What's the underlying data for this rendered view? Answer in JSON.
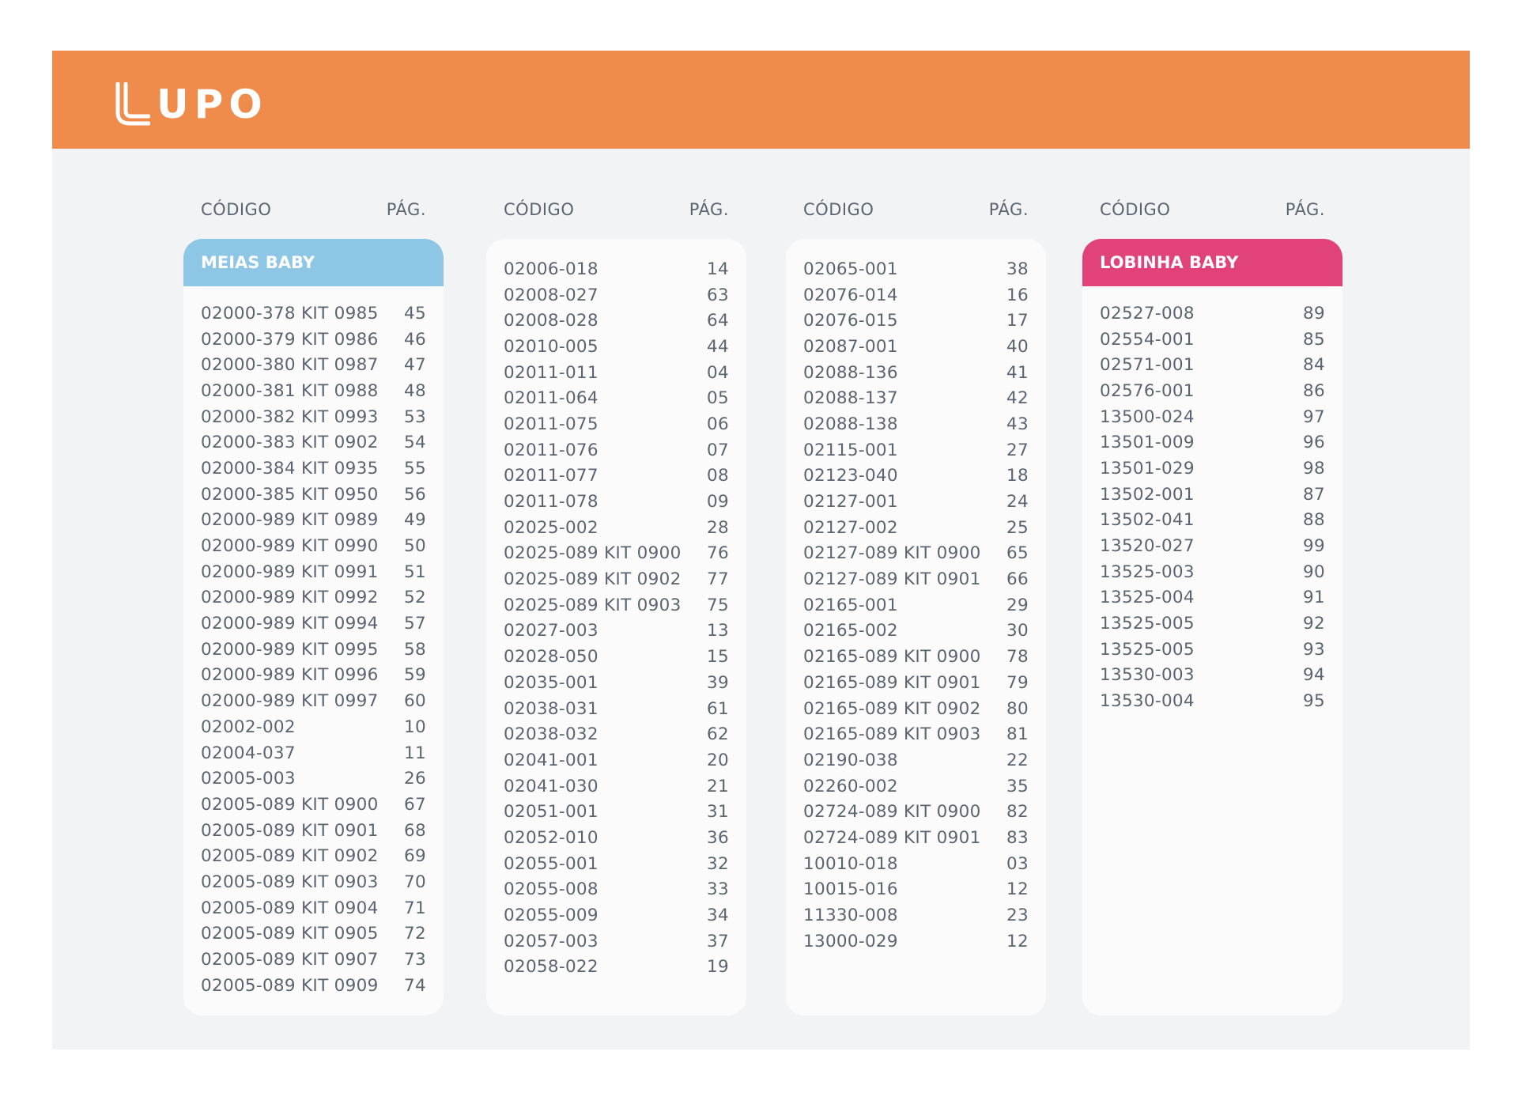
{
  "brand": {
    "name": "UPO",
    "color": "#f08c4b"
  },
  "columns": [
    {
      "code_header": "CÓDIGO",
      "page_header": "PÁG.",
      "banner": {
        "title": "MEIAS BABY",
        "color": "#8ec6e6"
      },
      "rows": [
        [
          "02000-378 KIT 0985",
          "45"
        ],
        [
          "02000-379 KIT 0986",
          "46"
        ],
        [
          "02000-380 KIT 0987",
          "47"
        ],
        [
          "02000-381 KIT 0988",
          "48"
        ],
        [
          "02000-382 KIT 0993",
          "53"
        ],
        [
          "02000-383 KIT 0902",
          "54"
        ],
        [
          "02000-384 KIT 0935",
          "55"
        ],
        [
          "02000-385 KIT 0950",
          "56"
        ],
        [
          "02000-989 KIT 0989",
          "49"
        ],
        [
          "02000-989 KIT 0990",
          "50"
        ],
        [
          "02000-989 KIT 0991",
          "51"
        ],
        [
          "02000-989 KIT 0992",
          "52"
        ],
        [
          "02000-989 KIT 0994",
          "57"
        ],
        [
          "02000-989 KIT 0995",
          "58"
        ],
        [
          "02000-989 KIT 0996",
          "59"
        ],
        [
          "02000-989 KIT 0997",
          "60"
        ],
        [
          "02002-002",
          "10"
        ],
        [
          "02004-037",
          "11"
        ],
        [
          "02005-003",
          "26"
        ],
        [
          "02005-089 KIT 0900",
          "67"
        ],
        [
          "02005-089 KIT 0901",
          "68"
        ],
        [
          "02005-089 KIT 0902",
          "69"
        ],
        [
          "02005-089 KIT 0903",
          "70"
        ],
        [
          "02005-089 KIT 0904",
          "71"
        ],
        [
          "02005-089 KIT 0905",
          "72"
        ],
        [
          "02005-089 KIT 0907",
          "73"
        ],
        [
          "02005-089 KIT 0909",
          "74"
        ]
      ]
    },
    {
      "code_header": "CÓDIGO",
      "page_header": "PÁG.",
      "banner": null,
      "rows": [
        [
          "02006-018",
          "14"
        ],
        [
          "02008-027",
          "63"
        ],
        [
          "02008-028",
          "64"
        ],
        [
          "02010-005",
          "44"
        ],
        [
          "02011-011",
          "04"
        ],
        [
          "02011-064",
          "05"
        ],
        [
          "02011-075",
          "06"
        ],
        [
          "02011-076",
          "07"
        ],
        [
          "02011-077",
          "08"
        ],
        [
          "02011-078",
          "09"
        ],
        [
          "02025-002",
          "28"
        ],
        [
          "02025-089 KIT 0900",
          "76"
        ],
        [
          "02025-089 KIT 0902",
          "77"
        ],
        [
          "02025-089 KIT 0903",
          "75"
        ],
        [
          "02027-003",
          "13"
        ],
        [
          "02028-050",
          "15"
        ],
        [
          "02035-001",
          "39"
        ],
        [
          "02038-031",
          "61"
        ],
        [
          "02038-032",
          "62"
        ],
        [
          "02041-001",
          "20"
        ],
        [
          "02041-030",
          "21"
        ],
        [
          "02051-001",
          "31"
        ],
        [
          "02052-010",
          "36"
        ],
        [
          "02055-001",
          "32"
        ],
        [
          "02055-008",
          "33"
        ],
        [
          "02055-009",
          "34"
        ],
        [
          "02057-003",
          "37"
        ],
        [
          "02058-022",
          "19"
        ]
      ]
    },
    {
      "code_header": "CÓDIGO",
      "page_header": "PÁG.",
      "banner": null,
      "rows": [
        [
          "02065-001",
          "38"
        ],
        [
          "02076-014",
          "16"
        ],
        [
          "02076-015",
          "17"
        ],
        [
          "02087-001",
          "40"
        ],
        [
          "02088-136",
          "41"
        ],
        [
          "02088-137",
          "42"
        ],
        [
          "02088-138",
          "43"
        ],
        [
          "02115-001",
          "27"
        ],
        [
          "02123-040",
          "18"
        ],
        [
          "02127-001",
          "24"
        ],
        [
          "02127-002",
          "25"
        ],
        [
          "02127-089 KIT 0900",
          "65"
        ],
        [
          "02127-089 KIT 0901",
          "66"
        ],
        [
          "02165-001",
          "29"
        ],
        [
          "02165-002",
          "30"
        ],
        [
          "02165-089 KIT 0900",
          "78"
        ],
        [
          "02165-089 KIT 0901",
          "79"
        ],
        [
          "02165-089 KIT 0902",
          "80"
        ],
        [
          "02165-089 KIT 0903",
          "81"
        ],
        [
          "02190-038",
          "22"
        ],
        [
          "02260-002",
          "35"
        ],
        [
          "02724-089 KIT 0900",
          "82"
        ],
        [
          "02724-089 KIT 0901",
          "83"
        ],
        [
          "10010-018",
          "03"
        ],
        [
          "10015-016",
          "12"
        ],
        [
          "11330-008",
          "23"
        ],
        [
          "13000-029",
          "12"
        ]
      ]
    },
    {
      "code_header": "CÓDIGO",
      "page_header": "PÁG.",
      "banner": {
        "title": "LOBINHA BABY",
        "color": "#e2427a"
      },
      "rows": [
        [
          "02527-008",
          "89"
        ],
        [
          "02554-001",
          "85"
        ],
        [
          "02571-001",
          "84"
        ],
        [
          "02576-001",
          "86"
        ],
        [
          "13500-024",
          "97"
        ],
        [
          "13501-009",
          "96"
        ],
        [
          "13501-029",
          "98"
        ],
        [
          "13502-001",
          "87"
        ],
        [
          "13502-041",
          "88"
        ],
        [
          "13520-027",
          "99"
        ],
        [
          "13525-003",
          "90"
        ],
        [
          "13525-004",
          "91"
        ],
        [
          "13525-005",
          "92"
        ],
        [
          "13525-005",
          "93"
        ],
        [
          "13530-003",
          "94"
        ],
        [
          "13530-004",
          "95"
        ]
      ]
    }
  ]
}
